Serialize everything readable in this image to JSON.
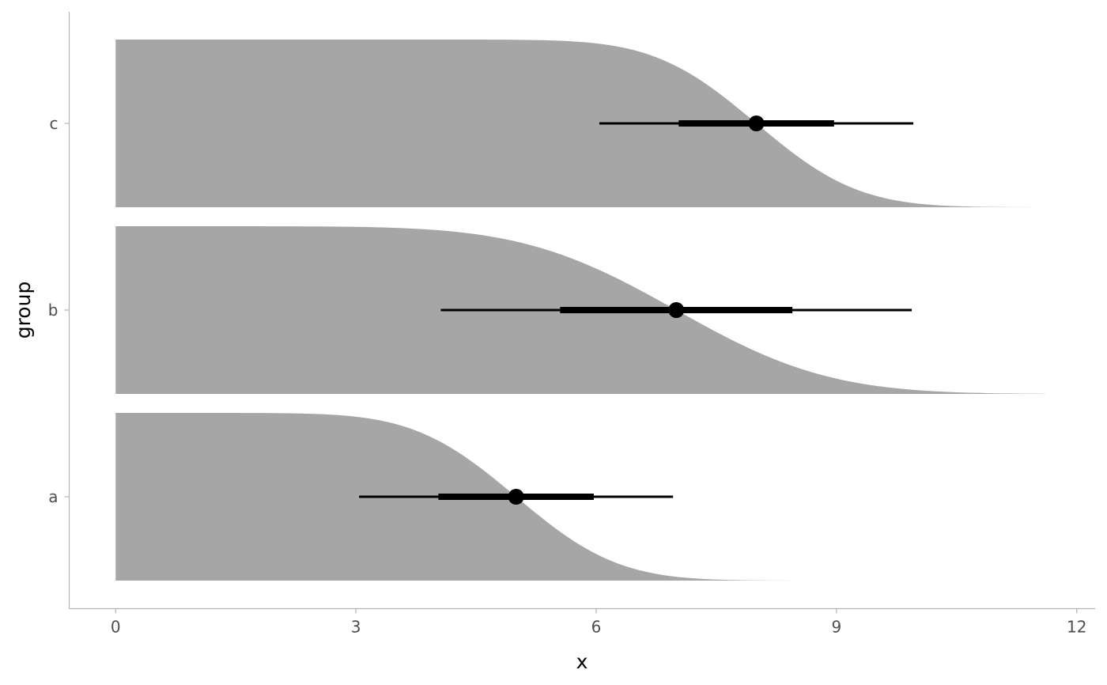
{
  "chart_data": {
    "type": "ccdf_interval",
    "xlabel": "x",
    "ylabel": "group",
    "xlim": [
      -0.58,
      12.23
    ],
    "x_ticks": [
      0,
      3,
      6,
      9,
      12
    ],
    "x_tick_labels": [
      "0",
      "3",
      "6",
      "9",
      "12"
    ],
    "categories": [
      "a",
      "b",
      "c"
    ],
    "fill_color": "#a6a6a6",
    "interval_color": "#000000",
    "grid": false,
    "series": [
      {
        "group": "a",
        "mean": 5,
        "sd": 1,
        "curve_start": 0,
        "curve_end": 8.7,
        "point": 5.0,
        "interval_66": [
          4.03,
          5.97
        ],
        "interval_95": [
          3.04,
          6.96
        ]
      },
      {
        "group": "b",
        "mean": 7,
        "sd": 1.5,
        "curve_start": 0,
        "curve_end": 11.6,
        "point": 7.0,
        "interval_66": [
          5.55,
          8.45
        ],
        "interval_95": [
          4.06,
          9.94
        ]
      },
      {
        "group": "c",
        "mean": 8,
        "sd": 1,
        "curve_start": 0,
        "curve_end": 11.6,
        "point": 8.0,
        "interval_66": [
          7.03,
          8.97
        ],
        "interval_95": [
          6.04,
          9.96
        ]
      }
    ]
  }
}
